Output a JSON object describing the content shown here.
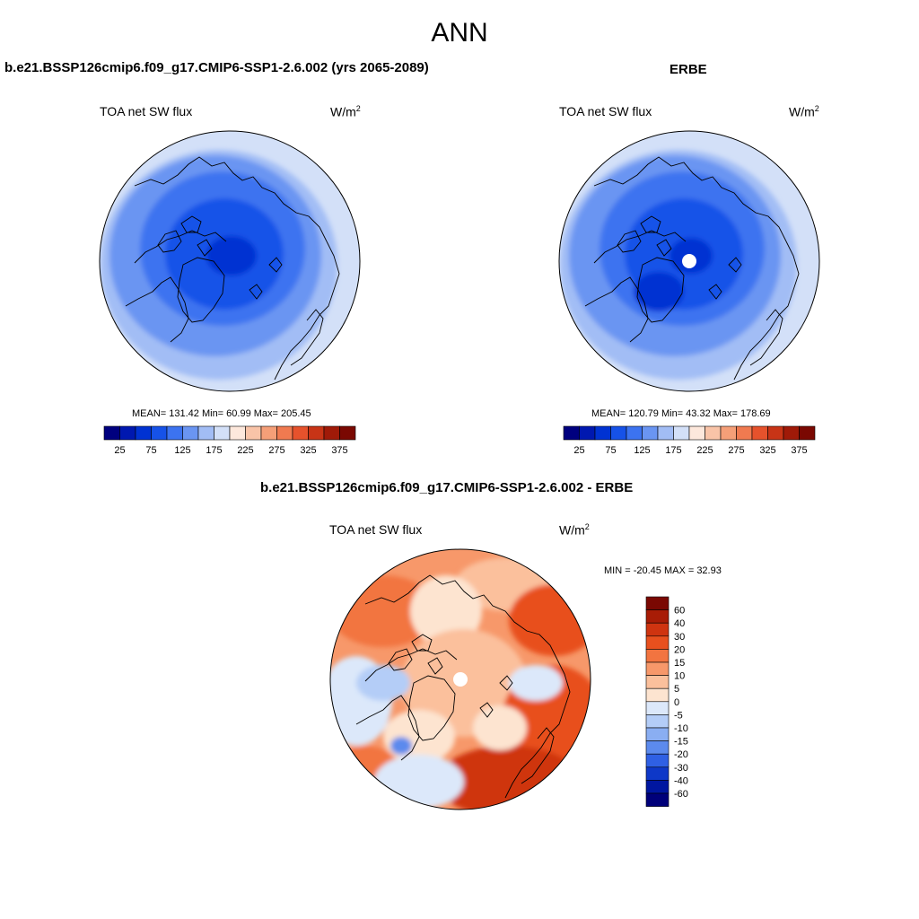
{
  "figure": {
    "season": "ANN"
  },
  "panels": [
    {
      "title": "b.e21.BSSP126cmip6.f09_g17.CMIP6-SSP1-2.6.002 (yrs 2065-2089)",
      "variable": "TOA net SW flux",
      "unit_base": "W/m",
      "unit_exp": "2",
      "stats": "MEAN= 131.42  Min=  60.99  Max= 205.45",
      "has_pole_hole": false
    },
    {
      "title": "ERBE",
      "variable": "TOA net SW flux",
      "unit_base": "W/m",
      "unit_exp": "2",
      "stats": "MEAN= 120.79  Min=  43.32  Max= 178.69",
      "has_pole_hole": true
    },
    {
      "title": "b.e21.BSSP126cmip6.f09_g17.CMIP6-SSP1-2.6.002 - ERBE",
      "variable": "TOA net SW flux",
      "unit_base": "W/m",
      "unit_exp": "2",
      "stats": "MIN = -20.45 MAX =  32.93",
      "has_pole_hole": true
    }
  ],
  "chart_data": [
    {
      "type": "heatmap",
      "projection": "north-polar-stereographic",
      "title": "b.e21.BSSP126cmip6.f09_g17.CMIP6-SSP1-2.6.002 (yrs 2065-2089)",
      "variable": "TOA net SW flux",
      "units": "W/m2",
      "mean": 131.42,
      "min": 60.99,
      "max": 205.45,
      "colorbar": {
        "orientation": "horizontal",
        "levels": [
          25,
          50,
          75,
          100,
          125,
          150,
          175,
          200,
          225,
          250,
          275,
          300,
          325,
          350,
          375
        ],
        "tick_labels": [
          "25",
          "75",
          "125",
          "175",
          "225",
          "275",
          "325",
          "375"
        ],
        "colors": [
          "#00007f",
          "#0018b0",
          "#0032d2",
          "#1652e8",
          "#3c73f0",
          "#6a95f2",
          "#a2bdf5",
          "#d3e0f8",
          "#fde8dc",
          "#f9c4a8",
          "#f59f78",
          "#f07a50",
          "#e6522c",
          "#c83416",
          "#a01a08",
          "#7a0802"
        ]
      }
    },
    {
      "type": "heatmap",
      "projection": "north-polar-stereographic",
      "title": "ERBE",
      "variable": "TOA net SW flux",
      "units": "W/m2",
      "mean": 120.79,
      "min": 43.32,
      "max": 178.69,
      "colorbar": {
        "orientation": "horizontal",
        "levels": [
          25,
          50,
          75,
          100,
          125,
          150,
          175,
          200,
          225,
          250,
          275,
          300,
          325,
          350,
          375
        ],
        "tick_labels": [
          "25",
          "75",
          "125",
          "175",
          "225",
          "275",
          "325",
          "375"
        ],
        "colors": [
          "#00007f",
          "#0018b0",
          "#0032d2",
          "#1652e8",
          "#3c73f0",
          "#6a95f2",
          "#a2bdf5",
          "#d3e0f8",
          "#fde8dc",
          "#f9c4a8",
          "#f59f78",
          "#f07a50",
          "#e6522c",
          "#c83416",
          "#a01a08",
          "#7a0802"
        ]
      }
    },
    {
      "type": "heatmap",
      "projection": "north-polar-stereographic",
      "title": "b.e21.BSSP126cmip6.f09_g17.CMIP6-SSP1-2.6.002 - ERBE",
      "variable": "TOA net SW flux",
      "units": "W/m2",
      "min": -20.45,
      "max": 32.93,
      "colorbar": {
        "orientation": "vertical",
        "levels": [
          60,
          40,
          30,
          20,
          15,
          10,
          5,
          0,
          -5,
          -10,
          -15,
          -20,
          -30,
          -40,
          -60
        ],
        "tick_labels": [
          "60",
          "40",
          "30",
          "20",
          "15",
          "10",
          "5",
          "0",
          "-5",
          "-10",
          "-15",
          "-20",
          "-30",
          "-40",
          "-60"
        ],
        "colors": [
          "#7a0802",
          "#a81c06",
          "#cf3410",
          "#e8501e",
          "#f27440",
          "#f7986a",
          "#fbc09c",
          "#fde4d0",
          "#dce8fa",
          "#b4cdf7",
          "#8aaef2",
          "#5c8aed",
          "#2f60e4",
          "#0e38c8",
          "#0016a0",
          "#00007a"
        ]
      }
    }
  ]
}
